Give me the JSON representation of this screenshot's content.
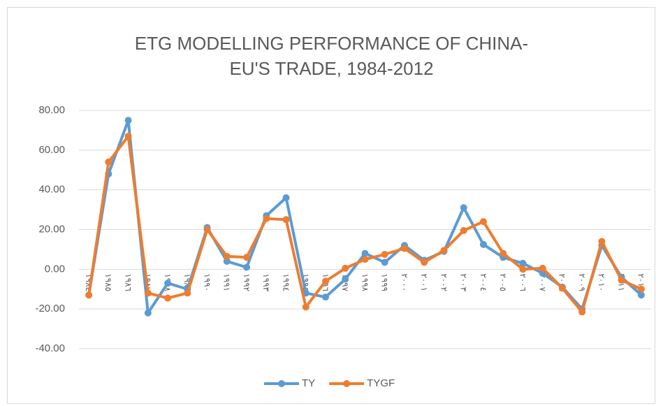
{
  "chart_data": {
    "type": "line",
    "title": "ETG MODELLING PERFORMANCE OF CHINA-EU'S TRADE, 1984-2012",
    "categories": [
      "١٩٨٤",
      "١٩٨٥",
      "١٩٨٦",
      "١٩٨٧",
      "١٩٨٨",
      "١٩٨٩",
      "١٩٩٠",
      "١٩٩١",
      "١٩٩٢",
      "١٩٩٣",
      "١٩٩٤",
      "١٩٩٥",
      "١٩٩٦",
      "١٩٩٧",
      "١٩٩٨",
      "١٩٩٩",
      "٢٠٠٠",
      "٢٠٠١",
      "٢٠٠٢",
      "٢٠٠٣",
      "٢٠٠٤",
      "٢٠٠٥",
      "٢٠٠٦",
      "٢٠٠٧",
      "٢٠٠٨",
      "٢٠٠٩",
      "٢٠١٠",
      "٢٠١١",
      "٢٠١٢"
    ],
    "series": [
      {
        "name": "TY",
        "color": "#5b9bd5",
        "values": [
          -13,
          48,
          75,
          -22,
          -7,
          -10,
          21,
          4,
          1,
          27,
          36,
          -12,
          -14,
          -5,
          8,
          3.5,
          12,
          4.5,
          9,
          31,
          12.5,
          6,
          3,
          -2,
          -9,
          -20,
          12,
          -4,
          -13
        ]
      },
      {
        "name": "TYGF",
        "color": "#ed7d31",
        "values": [
          -13,
          54,
          67,
          -12,
          -14.5,
          -12,
          20,
          6.5,
          6,
          25.5,
          25,
          -19,
          -6,
          0.5,
          5,
          7.5,
          10.5,
          3.5,
          9.5,
          19.5,
          24,
          8,
          0,
          0.5,
          -9.5,
          -21.5,
          14,
          -5.5,
          -10
        ]
      }
    ],
    "ylim": [
      -40,
      80
    ],
    "yticks": [
      {
        "value": -40,
        "label": "-40.00"
      },
      {
        "value": -20,
        "label": "-20.00"
      },
      {
        "value": 0,
        "label": "0.00"
      },
      {
        "value": 20,
        "label": "20.00"
      },
      {
        "value": 40,
        "label": "40.00"
      },
      {
        "value": 60,
        "label": "60.00"
      },
      {
        "value": 80,
        "label": "80.00"
      }
    ],
    "grid": true,
    "legend": "bottom"
  }
}
